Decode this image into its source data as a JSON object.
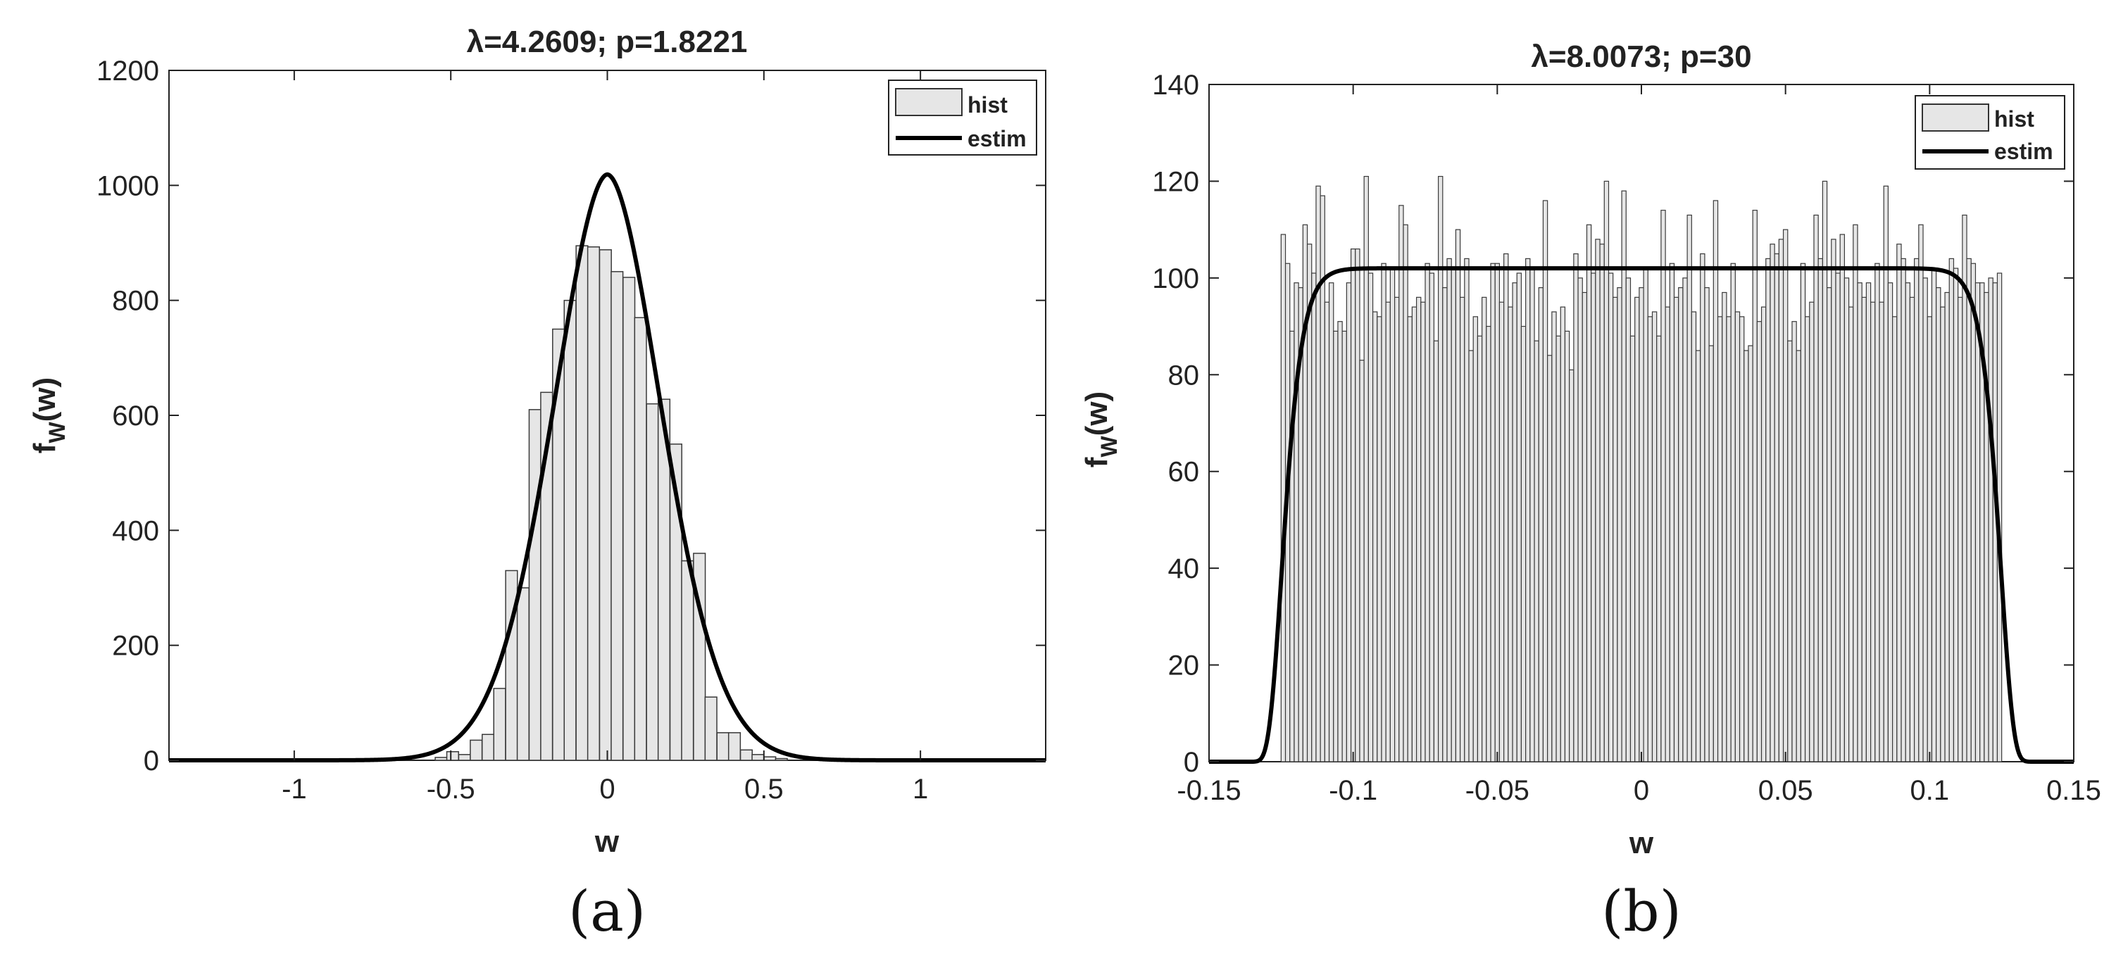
{
  "chart_data": [
    {
      "panel": "a",
      "type": "bar",
      "title": "λ=4.2609; p=1.8221",
      "xlabel": "w",
      "ylabel_main": "f",
      "ylabel_sub": "W",
      "ylabel_tail": "(w)",
      "caption": "(a)",
      "xlim": [
        -1.4,
        1.4
      ],
      "ylim": [
        0,
        1200
      ],
      "xticks": [
        -1,
        -0.5,
        0,
        0.5,
        1
      ],
      "xtick_labels": [
        "-1",
        "-0.5",
        "0",
        "0.5",
        "1"
      ],
      "yticks": [
        0,
        200,
        400,
        600,
        800,
        1000,
        1200
      ],
      "ytick_labels": [
        "0",
        "200",
        "400",
        "600",
        "800",
        "1000",
        "1200"
      ],
      "legend": {
        "position": "top-right",
        "entries": [
          "hist",
          "estim"
        ]
      },
      "series": [
        {
          "name": "hist",
          "kind": "histogram",
          "bin_width": 0.0375,
          "bins": [
            {
              "x": -0.531,
              "y": 5
            },
            {
              "x": -0.494,
              "y": 15
            },
            {
              "x": -0.456,
              "y": 10
            },
            {
              "x": -0.419,
              "y": 35
            },
            {
              "x": -0.381,
              "y": 45
            },
            {
              "x": -0.344,
              "y": 125
            },
            {
              "x": -0.306,
              "y": 330
            },
            {
              "x": -0.269,
              "y": 300
            },
            {
              "x": -0.231,
              "y": 610
            },
            {
              "x": -0.194,
              "y": 640
            },
            {
              "x": -0.156,
              "y": 750
            },
            {
              "x": -0.119,
              "y": 800
            },
            {
              "x": -0.081,
              "y": 895
            },
            {
              "x": -0.044,
              "y": 893
            },
            {
              "x": -0.006,
              "y": 888
            },
            {
              "x": 0.031,
              "y": 850
            },
            {
              "x": 0.069,
              "y": 840
            },
            {
              "x": 0.106,
              "y": 770
            },
            {
              "x": 0.144,
              "y": 620
            },
            {
              "x": 0.181,
              "y": 628
            },
            {
              "x": 0.219,
              "y": 550
            },
            {
              "x": 0.256,
              "y": 347
            },
            {
              "x": 0.294,
              "y": 360
            },
            {
              "x": 0.331,
              "y": 110
            },
            {
              "x": 0.369,
              "y": 48
            },
            {
              "x": 0.406,
              "y": 48
            },
            {
              "x": 0.444,
              "y": 18
            },
            {
              "x": 0.481,
              "y": 10
            },
            {
              "x": 0.519,
              "y": 6
            },
            {
              "x": 0.556,
              "y": 3
            }
          ]
        },
        {
          "name": "estim",
          "kind": "generalized-gaussian",
          "peak": 1019,
          "scale": 0.25,
          "p": 1.8221,
          "x_range": [
            -1.4,
            1.4
          ]
        }
      ]
    },
    {
      "panel": "b",
      "type": "bar",
      "title": "λ=8.0073; p=30",
      "xlabel": "w",
      "ylabel_main": "f",
      "ylabel_sub": "W",
      "ylabel_tail": "(w)",
      "caption": "(b)",
      "xlim": [
        -0.15,
        0.15
      ],
      "ylim": [
        0,
        140
      ],
      "xticks": [
        -0.15,
        -0.1,
        -0.05,
        0,
        0.05,
        0.1,
        0.15
      ],
      "xtick_labels": [
        "-0.15",
        "-0.1",
        "-0.05",
        "0",
        "0.05",
        "0.1",
        "0.15"
      ],
      "yticks": [
        0,
        20,
        40,
        60,
        80,
        100,
        120,
        140
      ],
      "ytick_labels": [
        "0",
        "20",
        "40",
        "60",
        "80",
        "100",
        "120",
        "140"
      ],
      "legend": {
        "position": "top-right",
        "entries": [
          "hist",
          "estim"
        ]
      },
      "series": [
        {
          "name": "hist",
          "kind": "histogram",
          "x_start": -0.125,
          "x_end": 0.125,
          "values": [
            109,
            103,
            89,
            99,
            98,
            111,
            107,
            101,
            119,
            117,
            95,
            99,
            89,
            91,
            89,
            99,
            106,
            106,
            83,
            121,
            101,
            93,
            92,
            103,
            95,
            102,
            96,
            115,
            111,
            92,
            94,
            96,
            95,
            103,
            101,
            87,
            121,
            98,
            104,
            102,
            110,
            96,
            104,
            85,
            92,
            88,
            96,
            90,
            103,
            103,
            95,
            105,
            94,
            99,
            101,
            90,
            104,
            102,
            87,
            98,
            116,
            84,
            93,
            88,
            94,
            89,
            81,
            105,
            100,
            97,
            111,
            101,
            108,
            107,
            120,
            101,
            96,
            98,
            118,
            100,
            88,
            96,
            98,
            102,
            92,
            93,
            88,
            114,
            94,
            103,
            96,
            98,
            100,
            113,
            93,
            85,
            105,
            98,
            86,
            116,
            92,
            97,
            92,
            103,
            93,
            92,
            85,
            86,
            114,
            91,
            94,
            104,
            107,
            105,
            108,
            110,
            87,
            91,
            85,
            103,
            92,
            95,
            113,
            104,
            120,
            98,
            108,
            101,
            109,
            100,
            94,
            111,
            99,
            96,
            99,
            95,
            103,
            95,
            119,
            99,
            92,
            107,
            104,
            99,
            96,
            104,
            111,
            100,
            92,
            102,
            98,
            94,
            97,
            104,
            102,
            96,
            113,
            104,
            103,
            99,
            99,
            97,
            100,
            99,
            101
          ]
        },
        {
          "name": "estim",
          "kind": "generalized-gaussian",
          "peak": 102,
          "scale": 0.125,
          "p": 30,
          "x_range": [
            -0.15,
            0.15
          ]
        }
      ]
    }
  ]
}
